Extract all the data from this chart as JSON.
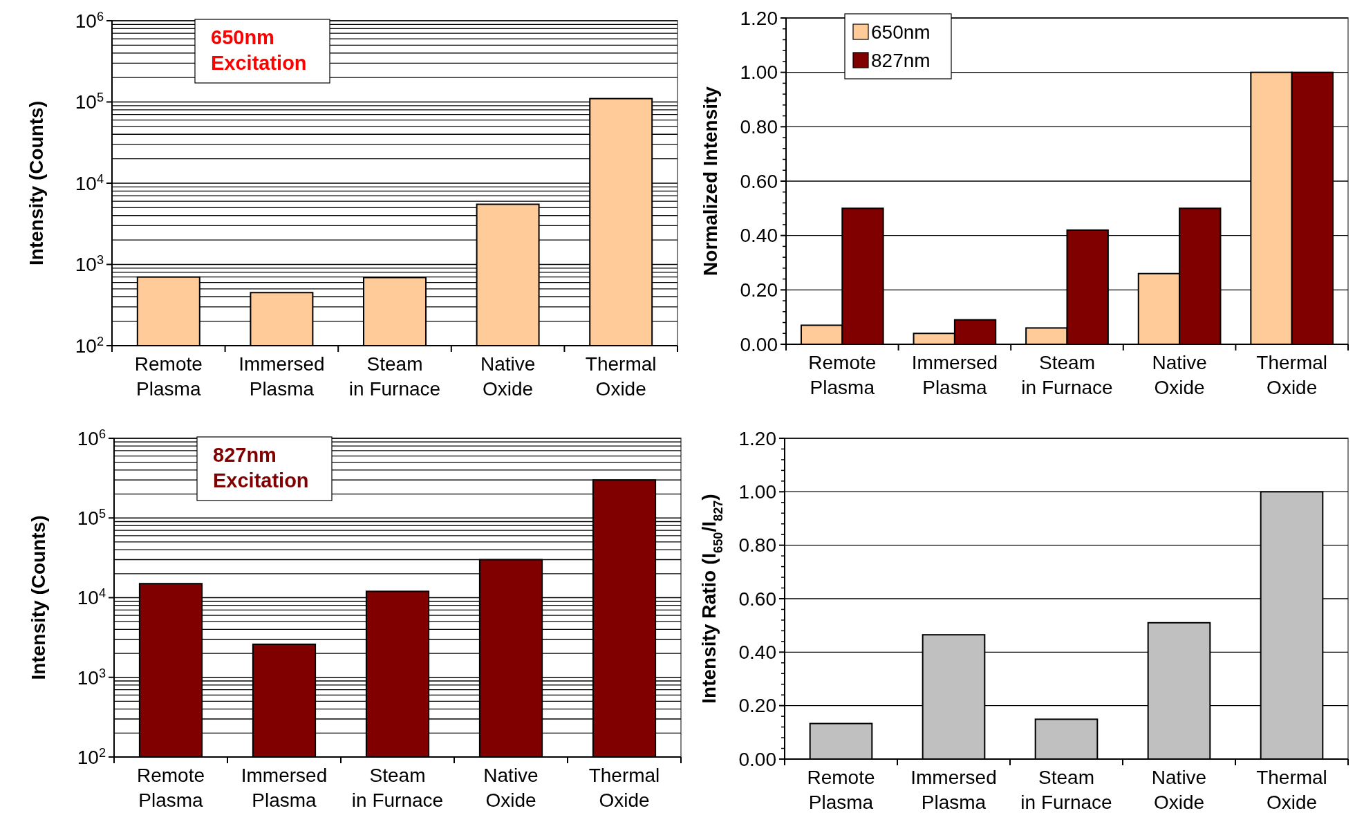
{
  "chart_data": [
    {
      "type": "bar",
      "title": "650nm Excitation",
      "ylabel": "Intensity (Counts)",
      "categories": [
        "Remote Plasma",
        "Immersed Plasma",
        "Steam in Furnace",
        "Native Oxide",
        "Thermal Oxide"
      ],
      "series": [
        {
          "color": "#ffcc99",
          "values": [
            700,
            450,
            690,
            5500,
            110000
          ]
        }
      ],
      "log": true,
      "ylim": [
        100,
        1000000
      ],
      "yticks": [
        {
          "value": 100,
          "label": "10$^{2}$"
        },
        {
          "value": 1000,
          "label": "10$^{3}$"
        },
        {
          "value": 10000,
          "label": "10$^{4}$"
        },
        {
          "value": 100000,
          "label": "10$^{5}$"
        },
        {
          "value": 1000000,
          "label": "10$^{6}$"
        }
      ],
      "grid": "y",
      "legend": false
    },
    {
      "type": "bar",
      "ylabel": "Normalized Intensity",
      "categories": [
        "Remote Plasma",
        "Immersed Plasma",
        "Steam in Furnace",
        "Native Oxide",
        "Thermal Oxide"
      ],
      "series": [
        {
          "name": "650nm",
          "color": "#ffcc99",
          "values": [
            0.07,
            0.04,
            0.06,
            0.26,
            1.0
          ]
        },
        {
          "name": "827nm",
          "color": "#800000",
          "values": [
            0.5,
            0.09,
            0.42,
            0.5,
            1.0
          ]
        }
      ],
      "ylim": [
        0,
        1.2
      ],
      "yticks": [
        {
          "value": 0,
          "label": "0.00"
        },
        {
          "value": 0.2,
          "label": "0.20"
        },
        {
          "value": 0.4,
          "label": "0.40"
        },
        {
          "value": 0.6,
          "label": "0.60"
        },
        {
          "value": 0.8,
          "label": "0.80"
        },
        {
          "value": 1.0,
          "label": "1.00"
        },
        {
          "value": 1.2,
          "label": "1.20"
        }
      ],
      "grid": "y",
      "legend": "top left"
    },
    {
      "type": "bar",
      "title": "827nm Excitation",
      "ylabel": "Intensity (Counts)",
      "categories": [
        "Remote Plasma",
        "Immersed Plasma",
        "Steam in Furnace",
        "Native Oxide",
        "Thermal Oxide"
      ],
      "series": [
        {
          "color": "#800000",
          "values": [
            15000,
            2600,
            12000,
            30000,
            300000
          ]
        }
      ],
      "log": true,
      "ylim": [
        100,
        1000000
      ],
      "yticks": [
        {
          "value": 100,
          "label": "10$^{2}$"
        },
        {
          "value": 1000,
          "label": "10$^{3}$"
        },
        {
          "value": 10000,
          "label": "10$^{4}$"
        },
        {
          "value": 100000,
          "label": "10$^{5}$"
        },
        {
          "value": 1000000,
          "label": "10$^{6}$"
        }
      ],
      "grid": "y",
      "legend": false
    },
    {
      "type": "bar",
      "ylabel": "Intensity Ratio (I$_{650}$/I$_{827}$)",
      "categories": [
        "Remote Plasma",
        "Immersed Plasma",
        "Steam in Furnace",
        "Native Oxide",
        "Thermal Oxide"
      ],
      "series": [
        {
          "color": "#c0c0c0",
          "values": [
            0.133,
            0.465,
            0.149,
            0.51,
            1.0
          ]
        }
      ],
      "ylim": [
        0,
        1.2
      ],
      "yticks": [
        {
          "value": 0,
          "label": "0.00"
        },
        {
          "value": 0.2,
          "label": "0.20"
        },
        {
          "value": 0.4,
          "label": "0.40"
        },
        {
          "value": 0.6,
          "label": "0.60"
        },
        {
          "value": 0.8,
          "label": "0.80"
        },
        {
          "value": 1.0,
          "label": "1.00"
        },
        {
          "value": 1.2,
          "label": "1.20"
        }
      ],
      "grid": "y",
      "legend": false
    }
  ]
}
